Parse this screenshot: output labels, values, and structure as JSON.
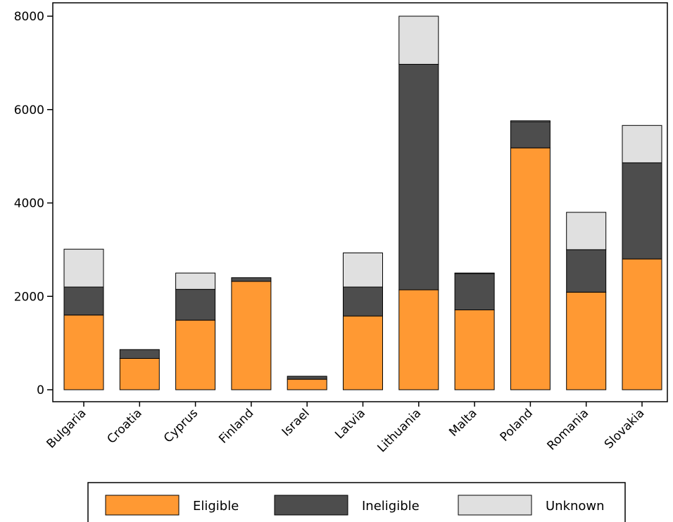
{
  "chart_data": {
    "type": "bar",
    "stacked": true,
    "categories": [
      "Bulgaria",
      "Croatia",
      "Cyprus",
      "Finland",
      "Israel",
      "Latvia",
      "Lithuania",
      "Malta",
      "Poland",
      "Romania",
      "Slovakia"
    ],
    "series": [
      {
        "name": "Eligible",
        "color": "#FF9933",
        "values": [
          1600,
          670,
          1490,
          2320,
          225,
          1580,
          2140,
          1710,
          5180,
          2090,
          2800
        ]
      },
      {
        "name": "Ineligible",
        "color": "#4D4D4D",
        "values": [
          600,
          190,
          660,
          80,
          65,
          620,
          4830,
          780,
          560,
          910,
          2060
        ]
      },
      {
        "name": "Unknown",
        "color": "#E0E0E0",
        "values": [
          810,
          0,
          350,
          0,
          0,
          730,
          1030,
          10,
          20,
          800,
          800
        ]
      }
    ],
    "ylim": [
      0,
      8000
    ],
    "yticks": [
      0,
      2000,
      4000,
      6000,
      8000
    ],
    "ytick_labels": [
      "0",
      "2000",
      "4000",
      "6000",
      "8000"
    ],
    "xlabel": "",
    "ylabel": "",
    "title": "",
    "grid": false,
    "legend_position": "bottom"
  }
}
